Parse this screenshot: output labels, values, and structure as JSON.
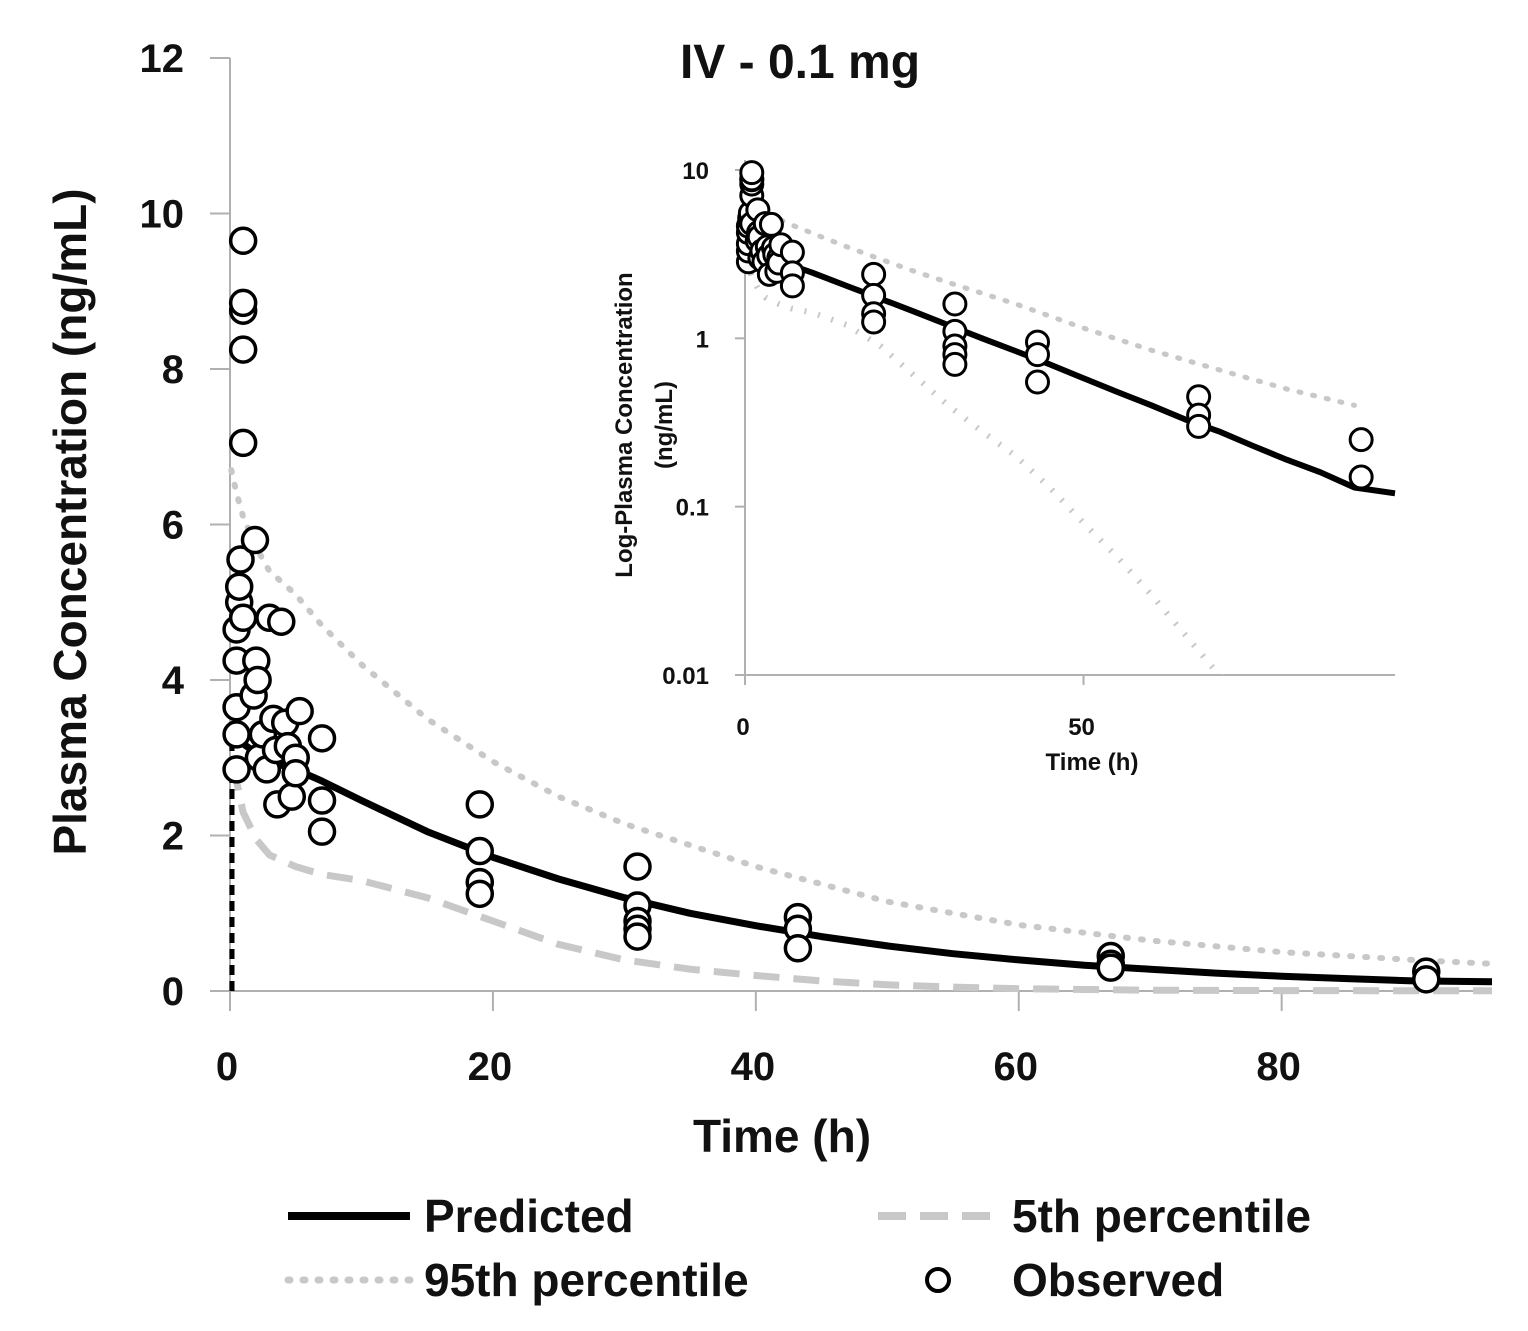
{
  "colors": {
    "predicted": "#000000",
    "p5": "#c8c8c8",
    "p95": "#c8c8c8",
    "observed_fill": "#ffffff",
    "observed_stroke": "#000000",
    "axis": "#b0b0b0"
  },
  "legend": {
    "predicted": "Predicted",
    "p5": "5th percentile",
    "p95": "95th percentile",
    "observed": "Observed"
  },
  "chart_data": [
    {
      "id": "main",
      "type": "line",
      "title": "IV - 0.1 mg",
      "xlabel": "Time (h)",
      "ylabel": "Plasma Concentration (ng/mL)",
      "xlim": [
        0,
        96
      ],
      "ylim": [
        0,
        12
      ],
      "xticks": [
        0,
        20,
        40,
        60,
        80
      ],
      "yticks": [
        0,
        2,
        4,
        6,
        8,
        10,
        12
      ],
      "xtick_labels": [
        "0",
        "20",
        "40",
        "60",
        "80"
      ],
      "ytick_labels": [
        "0",
        "2",
        "4",
        "6",
        "8",
        "10",
        "12"
      ],
      "series": [
        {
          "name": "Predicted",
          "style": "solid",
          "x": [
            0.1,
            0.5,
            1,
            2,
            3,
            5,
            7,
            10,
            15,
            20,
            25,
            30,
            35,
            40,
            45,
            50,
            55,
            60,
            65,
            70,
            75,
            80,
            85,
            90,
            96
          ],
          "y": [
            3.3,
            3.25,
            3.18,
            3.06,
            2.95,
            2.85,
            2.7,
            2.45,
            2.05,
            1.72,
            1.44,
            1.2,
            1.0,
            0.84,
            0.7,
            0.58,
            0.48,
            0.4,
            0.33,
            0.28,
            0.23,
            0.19,
            0.16,
            0.13,
            0.12
          ]
        },
        {
          "name": "5th percentile",
          "style": "dashed",
          "x": [
            0.1,
            0.5,
            1,
            2,
            3,
            5,
            7,
            10,
            15,
            20,
            25,
            30,
            35,
            40,
            45,
            50,
            55,
            60,
            70,
            80,
            96
          ],
          "y": [
            2.9,
            2.7,
            2.3,
            1.95,
            1.75,
            1.6,
            1.5,
            1.42,
            1.2,
            0.9,
            0.6,
            0.4,
            0.28,
            0.2,
            0.13,
            0.08,
            0.05,
            0.03,
            0.01,
            0.005,
            0.002
          ]
        },
        {
          "name": "95th percentile",
          "style": "dotted",
          "x": [
            0.1,
            0.5,
            1,
            2,
            3,
            5,
            7,
            10,
            15,
            20,
            25,
            30,
            40,
            50,
            60,
            70,
            80,
            90,
            96
          ],
          "y": [
            6.7,
            6.4,
            6.1,
            5.7,
            5.4,
            5.1,
            4.7,
            4.2,
            3.5,
            2.95,
            2.5,
            2.15,
            1.6,
            1.15,
            0.85,
            0.65,
            0.5,
            0.4,
            0.35
          ]
        }
      ],
      "observed": {
        "name": "Observed",
        "x": [
          0.5,
          0.5,
          0.5,
          0.5,
          0.5,
          0.7,
          0.7,
          0.8,
          1,
          1,
          1,
          1,
          1,
          1,
          1.9,
          1.8,
          2,
          2.1,
          2.2,
          2.5,
          2.8,
          3,
          3.3,
          3.5,
          3.6,
          3.9,
          4.2,
          4.4,
          4.7,
          5,
          5,
          5.3,
          7,
          7,
          7,
          19,
          19,
          19,
          19,
          31,
          31,
          31,
          31,
          31,
          43.2,
          43.2,
          43.2,
          67,
          67,
          67,
          91,
          91
        ],
        "y": [
          2.85,
          3.3,
          3.65,
          4.25,
          4.65,
          5.0,
          5.2,
          5.55,
          7.05,
          8.25,
          8.75,
          8.85,
          9.65,
          4.8,
          5.8,
          3.8,
          4.25,
          4.0,
          3.0,
          3.3,
          2.85,
          4.8,
          3.5,
          3.1,
          2.4,
          4.75,
          3.45,
          3.15,
          2.5,
          3.0,
          2.8,
          3.6,
          3.25,
          2.45,
          2.05,
          2.4,
          1.8,
          1.4,
          1.25,
          1.6,
          1.1,
          0.9,
          0.8,
          0.7,
          0.95,
          0.8,
          0.55,
          0.45,
          0.35,
          0.3,
          0.25,
          0.15
        ]
      }
    },
    {
      "id": "inset",
      "type": "line",
      "title": "",
      "xlabel": "Time (h)",
      "ylabel_line1": "Log-Plasma Concentration",
      "ylabel_line2": "(ng/mL)",
      "xlim": [
        0,
        96
      ],
      "ylim": [
        0.01,
        10
      ],
      "yscale": "log",
      "xticks": [
        0,
        50
      ],
      "yticks": [
        0.01,
        0.1,
        1,
        10
      ],
      "xtick_labels": [
        "0",
        "50"
      ],
      "ytick_labels": [
        "0.01",
        "0.1",
        "1",
        "10"
      ],
      "series_ref": "same series as main chart, drawn on log y-axis",
      "observed_ref": "same observed points as main chart"
    }
  ]
}
